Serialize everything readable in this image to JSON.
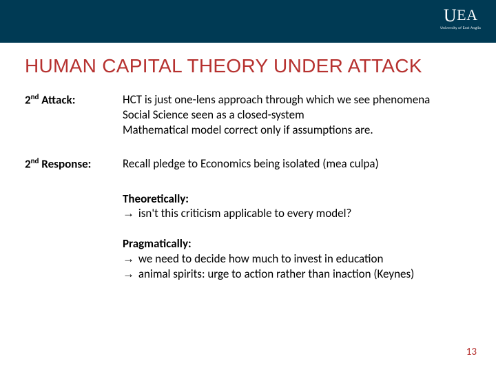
{
  "header": {
    "bg_color": "#003a54",
    "logo_sub": "University of East Anglia"
  },
  "title": "HUMAN CAPITAL THEORY UNDER ATTACK",
  "title_color": "#b6312f",
  "attack": {
    "label_pre": "2",
    "label_sup": "nd",
    "label_post": "Attack:",
    "lines": [
      "HCT is just one-lens approach through which we see phenomena",
      "Social Science seen as a closed-system",
      "Mathematical model correct only if assumptions are."
    ]
  },
  "response": {
    "label_pre": "2",
    "label_sup": "nd",
    "label_post": "Response:",
    "lines": [
      "Recall pledge to Economics being isolated (mea culpa)"
    ]
  },
  "theoretical": {
    "heading": "Theoretically:",
    "lines": [
      " isn't this criticism applicable to every model?"
    ]
  },
  "pragmatic": {
    "heading": "Pragmatically:",
    "lines": [
      " we need to decide how much to invest in education",
      " animal spirits: urge to action rather than inaction (Keynes)"
    ]
  },
  "page_number": "13",
  "body_font_size_pt": 13,
  "title_font_size_pt": 21,
  "background_color": "#ffffff",
  "text_color": "#000000",
  "accent_color": "#b6312f"
}
